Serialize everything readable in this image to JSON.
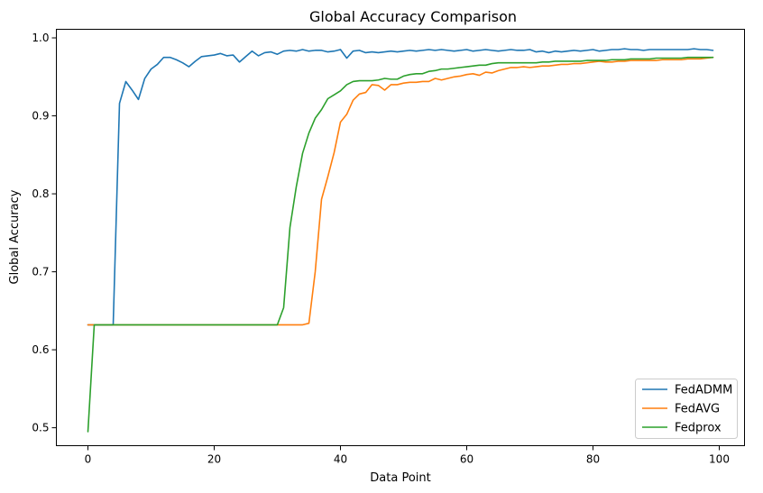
{
  "chart_data": {
    "type": "line",
    "title": "Global Accuracy Comparison",
    "xlabel": "Data Point",
    "ylabel": "Global Accuracy",
    "xlim": [
      -5,
      104
    ],
    "ylim": [
      0.477,
      1.011
    ],
    "xticks": [
      0,
      20,
      40,
      60,
      80,
      100
    ],
    "yticks": [
      0.5,
      0.6,
      0.7,
      0.8,
      0.9,
      1.0
    ],
    "xtick_labels": [
      "0",
      "20",
      "40",
      "60",
      "80",
      "100"
    ],
    "ytick_labels": [
      "0.5",
      "0.6",
      "0.7",
      "0.8",
      "0.9",
      "1.0"
    ],
    "grid": false,
    "legend_position": "lower-right",
    "x": [
      0,
      1,
      2,
      3,
      4,
      5,
      6,
      7,
      8,
      9,
      10,
      11,
      12,
      13,
      14,
      15,
      16,
      17,
      18,
      19,
      20,
      21,
      22,
      23,
      24,
      25,
      26,
      27,
      28,
      29,
      30,
      31,
      32,
      33,
      34,
      35,
      36,
      37,
      38,
      39,
      40,
      41,
      42,
      43,
      44,
      45,
      46,
      47,
      48,
      49,
      50,
      51,
      52,
      53,
      54,
      55,
      56,
      57,
      58,
      59,
      60,
      61,
      62,
      63,
      64,
      65,
      66,
      67,
      68,
      69,
      70,
      71,
      72,
      73,
      74,
      75,
      76,
      77,
      78,
      79,
      80,
      81,
      82,
      83,
      84,
      85,
      86,
      87,
      88,
      89,
      90,
      91,
      92,
      93,
      94,
      95,
      96,
      97,
      98,
      99
    ],
    "series": [
      {
        "name": "FedADMM",
        "color": "#1f77b4",
        "values": [
          0.632,
          0.632,
          0.632,
          0.632,
          0.632,
          0.916,
          0.944,
          0.933,
          0.921,
          0.948,
          0.96,
          0.966,
          0.975,
          0.975,
          0.972,
          0.968,
          0.963,
          0.97,
          0.976,
          0.977,
          0.978,
          0.98,
          0.977,
          0.978,
          0.969,
          0.976,
          0.983,
          0.977,
          0.981,
          0.982,
          0.979,
          0.983,
          0.984,
          0.983,
          0.985,
          0.983,
          0.984,
          0.984,
          0.982,
          0.983,
          0.985,
          0.974,
          0.983,
          0.984,
          0.981,
          0.982,
          0.981,
          0.982,
          0.983,
          0.982,
          0.983,
          0.984,
          0.983,
          0.984,
          0.985,
          0.984,
          0.985,
          0.984,
          0.983,
          0.984,
          0.985,
          0.983,
          0.984,
          0.985,
          0.984,
          0.983,
          0.984,
          0.985,
          0.984,
          0.984,
          0.985,
          0.982,
          0.983,
          0.981,
          0.983,
          0.982,
          0.983,
          0.984,
          0.983,
          0.984,
          0.985,
          0.983,
          0.984,
          0.985,
          0.985,
          0.986,
          0.985,
          0.985,
          0.984,
          0.985,
          0.985,
          0.985,
          0.985,
          0.985,
          0.985,
          0.985,
          0.986,
          0.985,
          0.985,
          0.984
        ]
      },
      {
        "name": "FedAVG",
        "color": "#ff7f0e",
        "values": [
          0.632,
          0.632,
          0.632,
          0.632,
          0.632,
          0.632,
          0.632,
          0.632,
          0.632,
          0.632,
          0.632,
          0.632,
          0.632,
          0.632,
          0.632,
          0.632,
          0.632,
          0.632,
          0.632,
          0.632,
          0.632,
          0.632,
          0.632,
          0.632,
          0.632,
          0.632,
          0.632,
          0.632,
          0.632,
          0.632,
          0.632,
          0.632,
          0.632,
          0.632,
          0.632,
          0.634,
          0.7,
          0.793,
          0.822,
          0.853,
          0.892,
          0.902,
          0.92,
          0.928,
          0.93,
          0.94,
          0.939,
          0.933,
          0.94,
          0.94,
          0.942,
          0.943,
          0.943,
          0.944,
          0.944,
          0.948,
          0.946,
          0.948,
          0.95,
          0.951,
          0.953,
          0.954,
          0.952,
          0.956,
          0.955,
          0.958,
          0.96,
          0.962,
          0.962,
          0.963,
          0.962,
          0.963,
          0.964,
          0.964,
          0.965,
          0.966,
          0.966,
          0.967,
          0.967,
          0.968,
          0.969,
          0.97,
          0.969,
          0.969,
          0.97,
          0.97,
          0.971,
          0.971,
          0.971,
          0.971,
          0.971,
          0.972,
          0.972,
          0.972,
          0.972,
          0.973,
          0.973,
          0.973,
          0.974,
          0.975
        ]
      },
      {
        "name": "Fedprox",
        "color": "#2ca02c",
        "values": [
          0.495,
          0.632,
          0.632,
          0.632,
          0.632,
          0.632,
          0.632,
          0.632,
          0.632,
          0.632,
          0.632,
          0.632,
          0.632,
          0.632,
          0.632,
          0.632,
          0.632,
          0.632,
          0.632,
          0.632,
          0.632,
          0.632,
          0.632,
          0.632,
          0.632,
          0.632,
          0.632,
          0.632,
          0.632,
          0.632,
          0.632,
          0.654,
          0.757,
          0.809,
          0.852,
          0.878,
          0.897,
          0.908,
          0.922,
          0.927,
          0.932,
          0.94,
          0.944,
          0.945,
          0.945,
          0.945,
          0.946,
          0.948,
          0.947,
          0.947,
          0.951,
          0.953,
          0.954,
          0.954,
          0.957,
          0.958,
          0.96,
          0.96,
          0.961,
          0.962,
          0.963,
          0.964,
          0.965,
          0.965,
          0.967,
          0.968,
          0.968,
          0.968,
          0.968,
          0.968,
          0.968,
          0.968,
          0.969,
          0.969,
          0.97,
          0.97,
          0.97,
          0.97,
          0.97,
          0.971,
          0.971,
          0.971,
          0.971,
          0.972,
          0.972,
          0.972,
          0.973,
          0.973,
          0.973,
          0.973,
          0.974,
          0.974,
          0.974,
          0.974,
          0.974,
          0.975,
          0.975,
          0.975,
          0.975,
          0.975
        ]
      }
    ]
  }
}
